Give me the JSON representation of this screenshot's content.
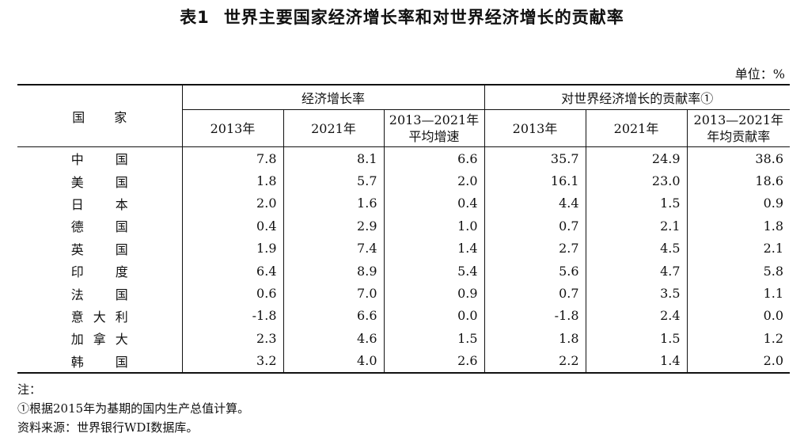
{
  "title": {
    "number": "表1",
    "text": "世界主要国家经济增长率和对世界经济增长的贡献率"
  },
  "unit": "单位：%",
  "header": {
    "country": "国 家",
    "group1": "经济增长率",
    "group2": "对世界经济增长的贡献率①",
    "sub": [
      "2013年",
      "2021年",
      "2013—2021年\n平均增速",
      "2013年",
      "2021年",
      "2013—2021年\n年均贡献率"
    ]
  },
  "rows": [
    {
      "country": "中国",
      "values": [
        "7.8",
        "8.1",
        "6.6",
        "35.7",
        "24.9",
        "38.6"
      ]
    },
    {
      "country": "美国",
      "values": [
        "1.8",
        "5.7",
        "2.0",
        "16.1",
        "23.0",
        "18.6"
      ]
    },
    {
      "country": "日本",
      "values": [
        "2.0",
        "1.6",
        "0.4",
        "4.4",
        "1.5",
        "0.9"
      ]
    },
    {
      "country": "德国",
      "values": [
        "0.4",
        "2.9",
        "1.0",
        "0.7",
        "2.1",
        "1.8"
      ]
    },
    {
      "country": "英国",
      "values": [
        "1.9",
        "7.4",
        "1.4",
        "2.7",
        "4.5",
        "2.1"
      ]
    },
    {
      "country": "印度",
      "values": [
        "6.4",
        "8.9",
        "5.4",
        "5.6",
        "4.7",
        "5.8"
      ]
    },
    {
      "country": "法国",
      "values": [
        "0.6",
        "7.0",
        "0.9",
        "0.7",
        "3.5",
        "1.1"
      ]
    },
    {
      "country": "意大利",
      "values": [
        "-1.8",
        "6.6",
        "0.0",
        "-1.8",
        "2.4",
        "0.0"
      ]
    },
    {
      "country": "加拿大",
      "values": [
        "2.3",
        "4.6",
        "1.5",
        "1.8",
        "1.5",
        "1.2"
      ]
    },
    {
      "country": "韩国",
      "values": [
        "3.2",
        "4.0",
        "2.6",
        "2.2",
        "1.4",
        "2.0"
      ]
    }
  ],
  "notes": {
    "label": "注：",
    "note1": "①根据2015年为基期的国内生产总值计算。",
    "source": "资料来源：世界银行WDI数据库。"
  }
}
